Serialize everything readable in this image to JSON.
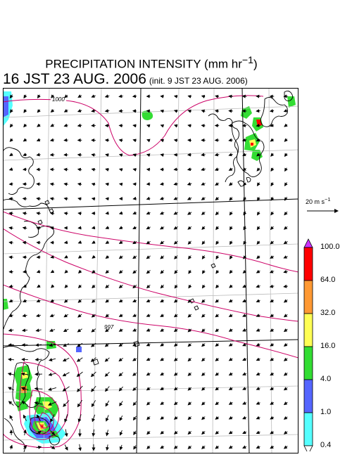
{
  "title": {
    "text": "PRECIPITATION INTENSITY (mm hr",
    "sup": "−1",
    "close": ")"
  },
  "subtitle": {
    "valid": "16 JST 23 AUG. 2006",
    "init": "(init. 9 JST 23 AUG. 2006)"
  },
  "wind_reference": {
    "label": "20 m s",
    "sup": "−1"
  },
  "contours": [
    {
      "label": "1000"
    },
    {
      "label": "997"
    }
  ],
  "colorbar": {
    "labels": [
      "100.0",
      "64.0",
      "32.0",
      "16.0",
      "4.0",
      "1.0",
      "0.4"
    ],
    "colors": [
      "#ff0000",
      "#ff9933",
      "#ffff55",
      "#33dd33",
      "#5566ff",
      "#55ffff"
    ],
    "top_color": "#cc33ff",
    "bottom_color": "#ffffff"
  },
  "colors": {
    "contour": "#cc0066",
    "grid": "#bbbbbb",
    "coast": "#000000",
    "arrow": "#000000"
  }
}
